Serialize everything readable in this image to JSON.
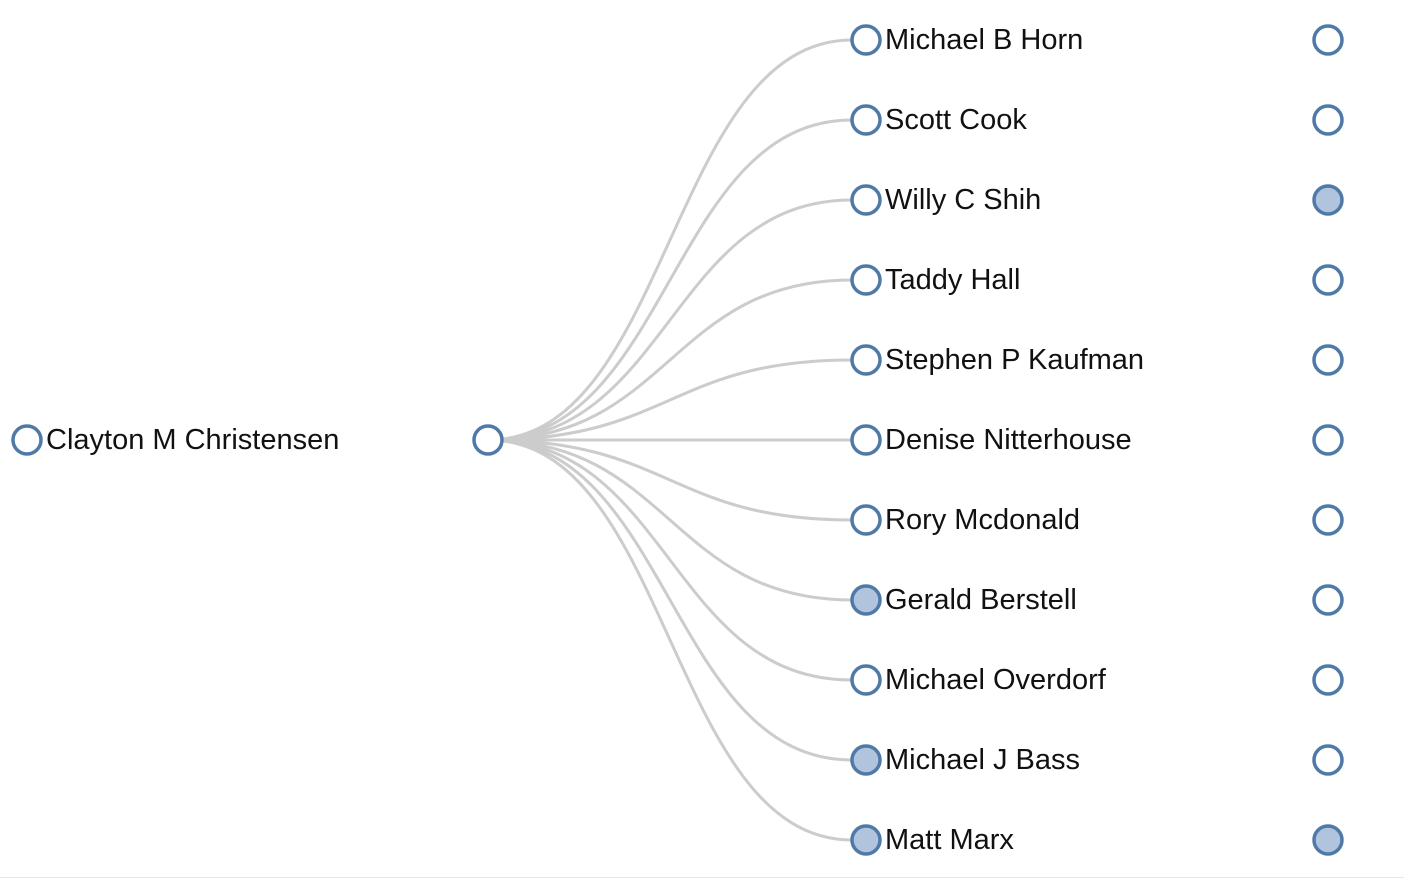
{
  "tree": {
    "root": {
      "label": "Clayton M Christensen",
      "collapsed": false
    },
    "hub": {
      "label": "",
      "collapsed": false
    },
    "children": [
      {
        "label": "Michael B Horn",
        "collapsed": false,
        "leaf_collapsed": false
      },
      {
        "label": "Scott Cook",
        "collapsed": false,
        "leaf_collapsed": false
      },
      {
        "label": "Willy C Shih",
        "collapsed": false,
        "leaf_collapsed": true
      },
      {
        "label": "Taddy Hall",
        "collapsed": false,
        "leaf_collapsed": false
      },
      {
        "label": "Stephen P Kaufman",
        "collapsed": false,
        "leaf_collapsed": false
      },
      {
        "label": "Denise Nitterhouse",
        "collapsed": false,
        "leaf_collapsed": false
      },
      {
        "label": "Rory Mcdonald",
        "collapsed": false,
        "leaf_collapsed": false
      },
      {
        "label": "Gerald Berstell",
        "collapsed": true,
        "leaf_collapsed": false
      },
      {
        "label": "Michael Overdorf",
        "collapsed": false,
        "leaf_collapsed": false
      },
      {
        "label": "Michael J Bass",
        "collapsed": true,
        "leaf_collapsed": false
      },
      {
        "label": "Matt Marx",
        "collapsed": true,
        "leaf_collapsed": true
      }
    ]
  },
  "colors": {
    "node_stroke": "#4f7aa8",
    "node_fill_open": "#ffffff",
    "node_fill_collapsed": "#b0c4de",
    "link": "#cccccc",
    "text": "#111111"
  }
}
